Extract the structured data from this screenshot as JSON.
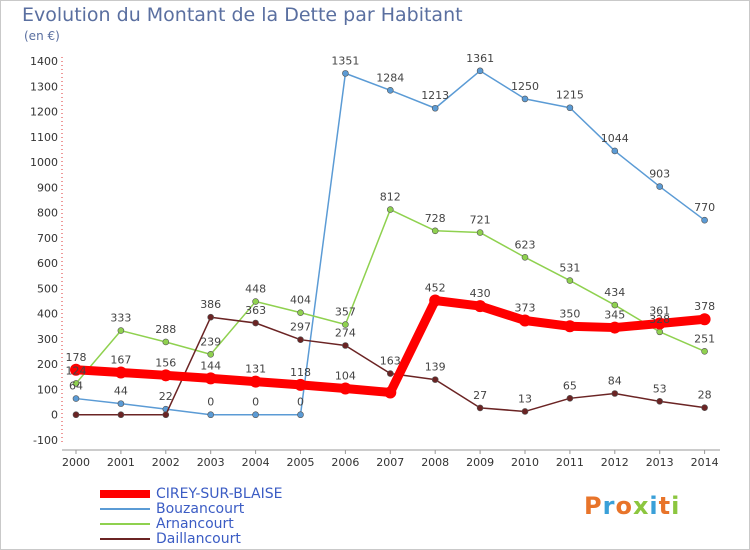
{
  "title": "Evolution du Montant de la Dette par Habitant",
  "unit": "(en €)",
  "logo": {
    "text": "Proxiti",
    "colors": [
      "#e8742a",
      "#3aa0d8",
      "#e8742a",
      "#8cc63f",
      "#3aa0d8",
      "#e8742a",
      "#8cc63f"
    ]
  },
  "chart_data": {
    "type": "line",
    "x": [
      "2000",
      "2001",
      "2002",
      "2003",
      "2004",
      "2005",
      "2006",
      "2007",
      "2008",
      "2009",
      "2010",
      "2011",
      "2012",
      "2013",
      "2014"
    ],
    "ylim": [
      -100,
      1400
    ],
    "yticks": [
      -100,
      0,
      100,
      200,
      300,
      400,
      500,
      600,
      700,
      800,
      900,
      1000,
      1100,
      1200,
      1300,
      1400
    ],
    "grid": false,
    "legend": "bottom-left",
    "series": [
      {
        "name": "CIREY-SUR-BLAISE",
        "color": "#ff0000",
        "width": 9,
        "markerSize": 6,
        "values": [
          178,
          167,
          156,
          144,
          131,
          118,
          104,
          88,
          452,
          430,
          373,
          350,
          345,
          361,
          378
        ],
        "labels": [
          "178",
          "167",
          "156",
          "144",
          "131",
          "118",
          "104",
          "",
          "452",
          "430",
          "373",
          "350",
          "345",
          "361",
          "378"
        ]
      },
      {
        "name": "Bouzancourt",
        "color": "#5b9bd5",
        "width": 1.5,
        "markerSize": 3,
        "values": [
          64,
          44,
          22,
          0,
          0,
          0,
          1351,
          1284,
          1213,
          1361,
          1250,
          1215,
          1044,
          903,
          770
        ],
        "labels": [
          "64",
          "44",
          "22",
          "0",
          "0",
          "0",
          "1351",
          "1284",
          "1213",
          "1361",
          "1250",
          "1215",
          "1044",
          "903",
          "770"
        ]
      },
      {
        "name": "Arnancourt",
        "color": "#8fd14f",
        "width": 1.5,
        "markerSize": 3,
        "values": [
          124,
          333,
          288,
          239,
          448,
          404,
          357,
          812,
          728,
          721,
          623,
          531,
          434,
          328,
          251
        ],
        "labels": [
          "124",
          "333",
          "288",
          "239",
          "448",
          "404",
          "357",
          "812",
          "728",
          "721",
          "623",
          "531",
          "434",
          "328",
          "251"
        ]
      },
      {
        "name": "Daillancourt",
        "color": "#6b2424",
        "width": 1.5,
        "markerSize": 3,
        "values": [
          0,
          0,
          0,
          386,
          363,
          297,
          274,
          163,
          139,
          27,
          13,
          65,
          84,
          53,
          28
        ],
        "labels": [
          "",
          "",
          "",
          "386",
          "363",
          "297",
          "274",
          "163",
          "139",
          "27",
          "13",
          "65",
          "84",
          "53",
          "28"
        ]
      }
    ]
  }
}
